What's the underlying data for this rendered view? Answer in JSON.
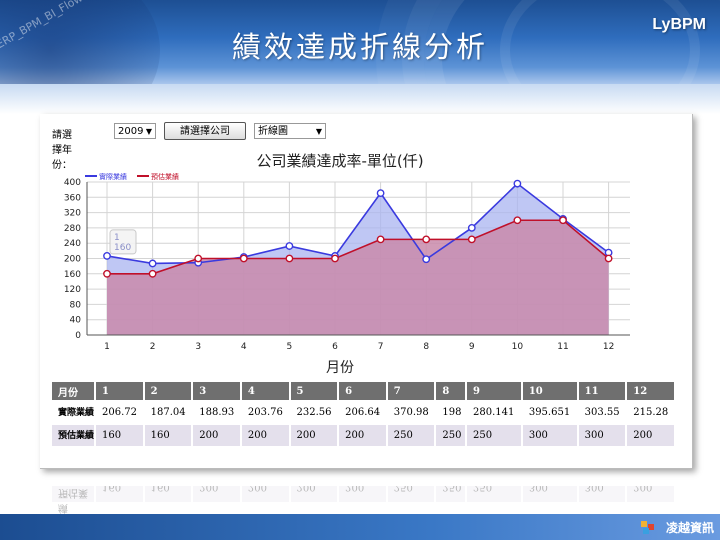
{
  "header": {
    "title": "績效達成折線分析",
    "brand": "LyBPM",
    "decor_text": "ERP_BPM_BI_Flow"
  },
  "controls": {
    "year_label": "請選擇年份：",
    "year_value": "2009",
    "company_button": "請選擇公司",
    "chart_type_value": "折線圖"
  },
  "chart_data": {
    "type": "area",
    "title": "公司業績達成率-單位(仟)",
    "xlabel": "月份",
    "ylabel": "",
    "x": [
      1,
      2,
      3,
      4,
      5,
      6,
      7,
      8,
      9,
      10,
      11,
      12
    ],
    "ylim": [
      0,
      400
    ],
    "yticks": [
      0,
      40,
      80,
      120,
      160,
      200,
      240,
      280,
      320,
      360,
      400
    ],
    "grid": true,
    "legend_position": "top-left",
    "series": [
      {
        "name": "實際業績",
        "color": "#3a3adf",
        "fill": "#aab4f0",
        "values": [
          206.72,
          187.04,
          188.93,
          203.76,
          232.56,
          206.64,
          370.98,
          198,
          280.141,
          395.651,
          303.55,
          215.28
        ]
      },
      {
        "name": "預估業績",
        "color": "#c0102a",
        "fill": "#c98aaa",
        "values": [
          160,
          160,
          200,
          200,
          200,
          200,
          250,
          250,
          250,
          300,
          300,
          200
        ]
      }
    ],
    "tooltip": {
      "label": "1",
      "value": "160"
    }
  },
  "table": {
    "header_label": "月份",
    "months": [
      "1",
      "2",
      "3",
      "4",
      "5",
      "6",
      "7",
      "8",
      "9",
      "10",
      "11",
      "12"
    ],
    "rows": [
      {
        "label": "實際業績",
        "values": [
          "206.72",
          "187.04",
          "188.93",
          "203.76",
          "232.56",
          "206.64",
          "370.98",
          "198",
          "280.141",
          "395.651",
          "303.55",
          "215.28"
        ]
      },
      {
        "label": "預估業績",
        "values": [
          "160",
          "160",
          "200",
          "200",
          "200",
          "200",
          "250",
          "250",
          "250",
          "300",
          "300",
          "200"
        ]
      }
    ]
  },
  "footer": {
    "logo_text": "凌越資訊"
  }
}
